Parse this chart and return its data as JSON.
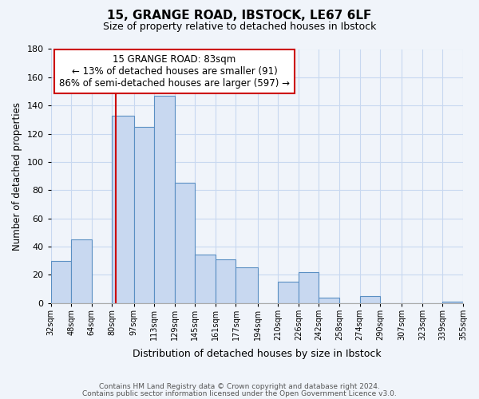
{
  "title": "15, GRANGE ROAD, IBSTOCK, LE67 6LF",
  "subtitle": "Size of property relative to detached houses in Ibstock",
  "xlabel": "Distribution of detached houses by size in Ibstock",
  "ylabel": "Number of detached properties",
  "footnote1": "Contains HM Land Registry data © Crown copyright and database right 2024.",
  "footnote2": "Contains public sector information licensed under the Open Government Licence v3.0.",
  "bar_edges": [
    32,
    48,
    64,
    80,
    97,
    113,
    129,
    145,
    161,
    177,
    194,
    210,
    226,
    242,
    258,
    274,
    290,
    307,
    323,
    339,
    355
  ],
  "bar_heights": [
    30,
    45,
    0,
    133,
    125,
    147,
    85,
    34,
    31,
    25,
    0,
    15,
    22,
    4,
    0,
    5,
    0,
    0,
    0,
    1
  ],
  "tick_labels": [
    "32sqm",
    "48sqm",
    "64sqm",
    "80sqm",
    "97sqm",
    "113sqm",
    "129sqm",
    "145sqm",
    "161sqm",
    "177sqm",
    "194sqm",
    "210sqm",
    "226sqm",
    "242sqm",
    "258sqm",
    "274sqm",
    "290sqm",
    "307sqm",
    "323sqm",
    "339sqm",
    "355sqm"
  ],
  "bar_color": "#c8d8f0",
  "bar_edge_color": "#5a8fc3",
  "vline_x": 83,
  "vline_color": "#cc0000",
  "ylim": [
    0,
    180
  ],
  "yticks": [
    0,
    20,
    40,
    60,
    80,
    100,
    120,
    140,
    160,
    180
  ],
  "annotation_title": "15 GRANGE ROAD: 83sqm",
  "annotation_line1": "← 13% of detached houses are smaller (91)",
  "annotation_line2": "86% of semi-detached houses are larger (597) →",
  "annotation_box_color": "#ffffff",
  "annotation_box_edge": "#cc0000",
  "grid_color": "#c8d8f0",
  "background_color": "#f0f4fa"
}
